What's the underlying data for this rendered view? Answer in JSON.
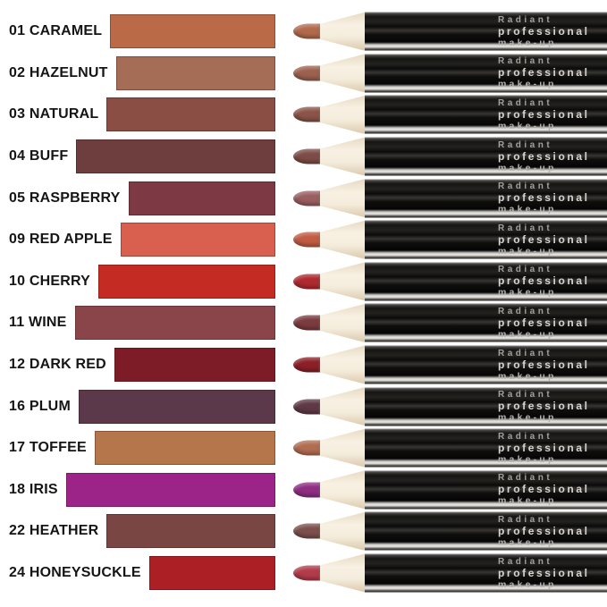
{
  "chart_data": {
    "type": "table",
    "title": "",
    "columns": [
      "shade",
      "swatch_color",
      "pencil_tip_color"
    ],
    "shades": [
      {
        "label": "01 CARAMEL",
        "swatch": "#ba6a47",
        "tip": "#b26a4d"
      },
      {
        "label": "02 HAZELNUT",
        "swatch": "#a56c56",
        "tip": "#9d6150"
      },
      {
        "label": "03 NATURAL",
        "swatch": "#8a4e44",
        "tip": "#8a5449"
      },
      {
        "label": "04 BUFF",
        "swatch": "#6e3d3d",
        "tip": "#7d4c48"
      },
      {
        "label": "05 RASPBERRY",
        "swatch": "#7d3a44",
        "tip": "#9a5f60"
      },
      {
        "label": "09 RED APPLE",
        "swatch": "#d95f4e",
        "tip": "#c25c44"
      },
      {
        "label": "10 CHERRY",
        "swatch": "#c42b22",
        "tip": "#af2a31"
      },
      {
        "label": "11 WINE",
        "swatch": "#8a454a",
        "tip": "#7b3c3f"
      },
      {
        "label": "12 DARK RED",
        "swatch": "#7d1c26",
        "tip": "#8c2029"
      },
      {
        "label": "16 PLUM",
        "swatch": "#5c394a",
        "tip": "#5e3946"
      },
      {
        "label": "17 TOFFEE",
        "swatch": "#b4764a",
        "tip": "#b26d51"
      },
      {
        "label": "18 IRIS",
        "swatch": "#9c2387",
        "tip": "#8f2e83"
      },
      {
        "label": "22 HEATHER",
        "swatch": "#7a4643",
        "tip": "#7c4f4c"
      },
      {
        "label": "24 HONEYSUCKLE",
        "swatch": "#ac1f25",
        "tip": "#b23c4c"
      }
    ]
  },
  "pencil": {
    "brand_line1": "Radiant",
    "brand_line2": "professional",
    "brand_line3": "make-up",
    "wood_color": "#f3ebda",
    "body_color": "#121210",
    "highlight_color": "#eceae6",
    "text_color": "#c8c6c2"
  },
  "page": {
    "background": "#ffffff"
  }
}
